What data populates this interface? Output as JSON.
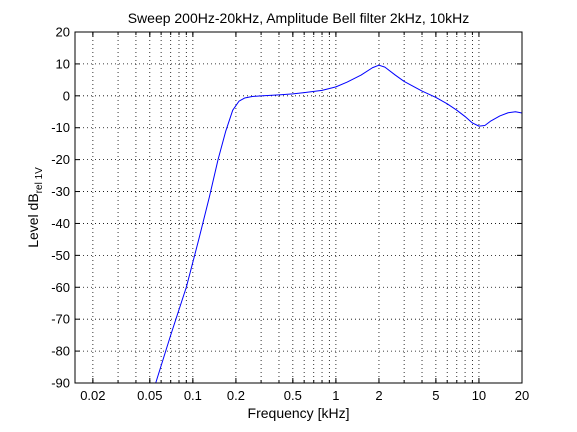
{
  "chart_data": {
    "type": "line",
    "title": "Sweep 200Hz-20kHz, Amplitude Bell filter 2kHz, 10kHz",
    "xlabel": "Frequency [kHz]",
    "ylabel_main": "Level dB",
    "ylabel_sub": "rel 1V",
    "x_scale": "log",
    "xlim": [
      0.015,
      20
    ],
    "ylim": [
      -90,
      20
    ],
    "grid": true,
    "x_ticks": [
      {
        "value": 0.02,
        "label": "0.02"
      },
      {
        "value": 0.05,
        "label": "0.05"
      },
      {
        "value": 0.1,
        "label": "0.1"
      },
      {
        "value": 0.2,
        "label": "0.2"
      },
      {
        "value": 0.5,
        "label": "0.5"
      },
      {
        "value": 1,
        "label": "1"
      },
      {
        "value": 2,
        "label": "2"
      },
      {
        "value": 5,
        "label": "5"
      },
      {
        "value": 10,
        "label": "10"
      },
      {
        "value": 20,
        "label": "20"
      }
    ],
    "x_grid": [
      0.02,
      0.03,
      0.04,
      0.05,
      0.06,
      0.07,
      0.08,
      0.09,
      0.1,
      0.2,
      0.3,
      0.4,
      0.5,
      0.6,
      0.7,
      0.8,
      0.9,
      1,
      2,
      3,
      4,
      5,
      6,
      7,
      8,
      9,
      10
    ],
    "y_ticks": [
      20,
      10,
      0,
      -10,
      -20,
      -30,
      -40,
      -50,
      -60,
      -70,
      -80,
      -90
    ],
    "series": [
      {
        "color": "#0000ff",
        "x": [
          0.055,
          0.07,
          0.09,
          0.11,
          0.13,
          0.15,
          0.17,
          0.19,
          0.21,
          0.23,
          0.26,
          0.3,
          0.4,
          0.5,
          0.6,
          0.8,
          1,
          1.2,
          1.5,
          1.8,
          2,
          2.2,
          2.6,
          3,
          4,
          5,
          6,
          7,
          8,
          9,
          10,
          11,
          12,
          14,
          16,
          18,
          20
        ],
        "y": [
          -90,
          -75,
          -60,
          -45,
          -32,
          -20,
          -11,
          -4.5,
          -1.7,
          -0.7,
          -0.2,
          0,
          0.3,
          0.6,
          1,
          1.7,
          2.8,
          4.3,
          6.5,
          8.8,
          9.6,
          9,
          6.5,
          4.5,
          1.5,
          -0.5,
          -2.5,
          -4.5,
          -6.5,
          -8.5,
          -9.5,
          -9.3,
          -8,
          -6.3,
          -5.3,
          -5,
          -5.4
        ]
      }
    ]
  }
}
